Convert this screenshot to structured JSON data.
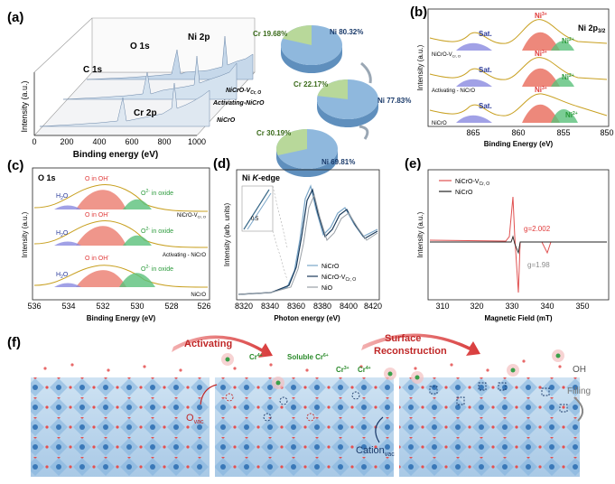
{
  "panels": {
    "a": {
      "letter": "(a)",
      "xlabel": "Binding energy (eV)",
      "ylabel": "Intensity (a.u.)",
      "xticks": [
        "0",
        "200",
        "400",
        "600",
        "800",
        "1000"
      ],
      "peaks": [
        "O 1s",
        "C 1s",
        "Ni 2p",
        "Cr 2p"
      ],
      "samples": [
        "NiCrO-V",
        "Cr, O",
        "Activating-NiCrO",
        "NiCrO"
      ]
    },
    "pies": [
      {
        "cr": "Cr 19.68%",
        "ni": "Ni 80.32%",
        "cr_frac": 0.1968
      },
      {
        "cr": "Cr 22.17%",
        "ni": "Ni 77.83%",
        "cr_frac": 0.2217
      },
      {
        "cr": "Cr 30.19%",
        "ni": "Ni 69.81%",
        "cr_frac": 0.3019
      }
    ],
    "b": {
      "letter": "(b)",
      "title": "Ni 2p",
      "title_sub": "3/2",
      "xlabel": "Binding Energy (eV)",
      "ylabel": "Intensity (a.u.)",
      "xticks": [
        "865",
        "860",
        "855",
        "850"
      ],
      "sat": "Sat.",
      "ni3": "Ni",
      "ni3_sup": "3+",
      "ni2": "Ni",
      "ni2_sup": "2+",
      "samples": [
        "NiCrO-V",
        "Cr, O",
        "Activating - NiCrO",
        "NiCrO"
      ]
    },
    "c": {
      "letter": "(c)",
      "title": "O 1s",
      "xlabel": "Binding Energy (eV)",
      "ylabel": "Intensity (a.u.)",
      "xticks": [
        "536",
        "534",
        "532",
        "530",
        "528",
        "526"
      ],
      "h2o": "H",
      "h2o_sub": "2",
      "h2o_end": "O",
      "ooh": "O in OH",
      "ooh_sup": "-",
      "o2": "O",
      "o2_sup": "2-",
      "o2_end": " in oxide",
      "samples": [
        "NiCrO-V",
        "Cr, O",
        "Activating - NiCrO",
        "NiCrO"
      ]
    },
    "d": {
      "letter": "(d)",
      "title": "Ni ",
      "title_k": "K",
      "title_end": "-edge",
      "xlabel": "Photon energy (eV)",
      "ylabel": "Intensity (arb. units)",
      "xticks": [
        "8320",
        "8340",
        "8360",
        "8380",
        "8400",
        "8420"
      ],
      "inset": "0.5",
      "legend": [
        "NiCrO",
        "NiCrO-V",
        "Cr, O",
        "NiO"
      ]
    },
    "e": {
      "letter": "(e)",
      "xlabel": "Magnetic Field (mT)",
      "ylabel": "Intensity (a.u.)",
      "xticks": [
        "310",
        "320",
        "330",
        "340",
        "350"
      ],
      "legend": [
        "NiCrO-V",
        "Cr, O",
        "NiCrO"
      ],
      "g1": "g=2.002",
      "g2": "g=1.98"
    },
    "f": {
      "letter": "(f)",
      "activating": "Activating",
      "surface": "Surface",
      "reconstruction": "Reconstruction",
      "cr4": "Cr",
      "cr4_sup": "4+",
      "soluble": "Soluble Cr",
      "soluble_sup": "6+",
      "cr3": "Cr",
      "cr3_sup": "3+",
      "cr4b": "Cr",
      "cr4b_sup": "4+",
      "ovac": "O",
      "ovac_sub": "vac",
      "cation": "Cation",
      "cation_sub": "vac",
      "oh": "OH",
      "filling": "Filling"
    }
  },
  "colors": {
    "pie_ni": "#8fb8dd",
    "pie_cr": "#b8d89a",
    "red": "#e03a3a",
    "green": "#2a9a3a",
    "blue": "#2a3a9a",
    "fit_gold": "#c8a020"
  }
}
